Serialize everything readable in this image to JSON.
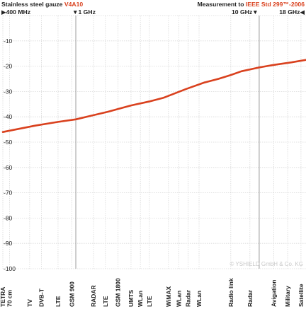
{
  "header": {
    "left_prefix": "Stainless steel gauze",
    "left_product": "V4A10",
    "right_prefix": "Measurement to",
    "right_standard": "IEEE Std 299™-2006"
  },
  "frequency_markers": {
    "start": "▶400 MHz",
    "one_ghz": "▼1 GHz",
    "ten_ghz": "10 GHz▼",
    "end": "18 GHz◀"
  },
  "copyright": "© YSHIELD GmbH & Co. KG",
  "colors": {
    "curve": "#d9411e",
    "noise": "#e7a08f",
    "grid": "#d8d8d8",
    "marker_line": "#9a9a9a",
    "axis_text": "#222222"
  },
  "chart_data": {
    "type": "line",
    "title": "Stainless steel gauze V4A10",
    "ylabel": "",
    "ylim": [
      -100,
      0
    ],
    "yticks": [
      -10,
      -20,
      -30,
      -40,
      -50,
      -60,
      -70,
      -80,
      -90,
      -100
    ],
    "x_scale": "log",
    "x_unit": "MHz",
    "xlim": [
      400,
      18000
    ],
    "grid": true,
    "series": [
      {
        "values_x": [
          400,
          600,
          800,
          1000,
          1500,
          2000,
          2500,
          3000,
          4000,
          5000,
          6000,
          7000,
          8000,
          10000,
          12000,
          15000,
          18000
        ],
        "values_y": [
          -46,
          -43.5,
          -42,
          -41,
          -38,
          -35.5,
          -34,
          -32.5,
          -29,
          -26.5,
          -25,
          -23.5,
          -22,
          -20.5,
          -19.5,
          -18.5,
          -17.5
        ]
      }
    ],
    "bands": [
      {
        "label": "TETRA",
        "freq": 400
      },
      {
        "label": "70 cm",
        "freq": 435
      },
      {
        "label": "TV",
        "freq": 560
      },
      {
        "label": "DVB-T",
        "freq": 650
      },
      {
        "label": "LTE",
        "freq": 800
      },
      {
        "label": "GSM 900",
        "freq": 950
      },
      {
        "label": "RADAR",
        "freq": 1250
      },
      {
        "label": "LTE",
        "freq": 1450
      },
      {
        "label": "GSM 1800",
        "freq": 1700
      },
      {
        "label": "UMTS",
        "freq": 2000
      },
      {
        "label": "WLan",
        "freq": 2250
      },
      {
        "label": "LTE",
        "freq": 2520
      },
      {
        "label": "WiMAX",
        "freq": 3200
      },
      {
        "label": "WLan",
        "freq": 3650
      },
      {
        "label": "Radar",
        "freq": 4100
      },
      {
        "label": "WLan",
        "freq": 4700
      },
      {
        "label": "Radio link",
        "freq": 7000
      },
      {
        "label": "Radar",
        "freq": 8900
      },
      {
        "label": "Avigation",
        "freq": 12000
      },
      {
        "label": "Military",
        "freq": 14300
      },
      {
        "label": "Satellite",
        "freq": 16900
      }
    ]
  }
}
